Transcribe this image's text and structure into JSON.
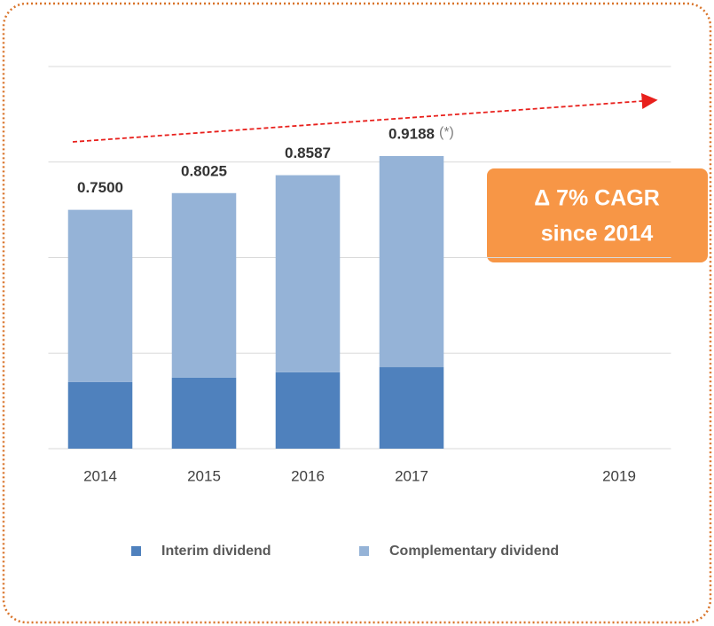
{
  "chart_data": {
    "type": "stacked-bar",
    "categories": [
      "2014",
      "2015",
      "2016",
      "2017",
      null,
      "2019"
    ],
    "series": [
      {
        "name": "Interim dividend",
        "color": "#4f81bd",
        "values": [
          0.209,
          0.223,
          0.24,
          0.256,
          null,
          null
        ]
      },
      {
        "name": "Complementary dividend",
        "color": "#95b3d7",
        "values": [
          0.541,
          0.5795,
          0.6187,
          0.6628,
          null,
          null
        ]
      }
    ],
    "totals": [
      0.75,
      0.8025,
      0.8587,
      0.9188,
      null,
      null
    ],
    "total_labels": [
      "0.7500",
      "0.8025",
      "0.8587",
      "0.9188",
      null,
      null
    ],
    "ylim": [
      0,
      1.2
    ],
    "yticks": [
      0,
      0.3,
      0.6,
      0.9,
      1.2
    ],
    "grid": true,
    "annotations": {
      "note": "(*)",
      "cagr_line1": "Δ 7% CAGR",
      "cagr_line2": "since 2014"
    }
  }
}
